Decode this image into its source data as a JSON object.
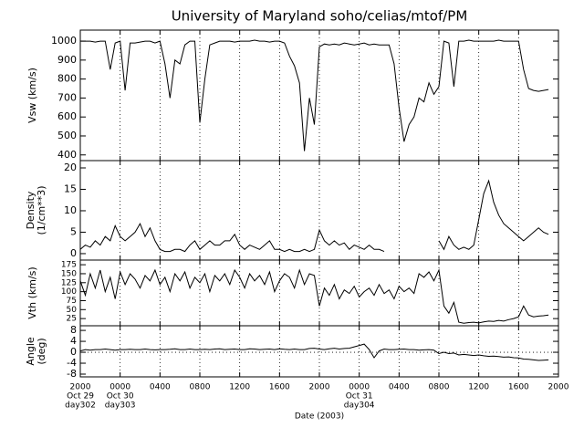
{
  "chart_data": {
    "type": "line",
    "title": "University of Maryland  soho/celias/mtof/PM",
    "xlabel": "Date (2003)",
    "color": "#000000",
    "grid": "x",
    "xlim": [
      0,
      48
    ],
    "xticks": [
      {
        "value": 0,
        "label": "2000"
      },
      {
        "value": 4,
        "label": "0000"
      },
      {
        "value": 8,
        "label": "0400"
      },
      {
        "value": 12,
        "label": "0800"
      },
      {
        "value": 16,
        "label": "1200"
      },
      {
        "value": 20,
        "label": "1600"
      },
      {
        "value": 24,
        "label": "2000"
      },
      {
        "value": 28,
        "label": "0000"
      },
      {
        "value": 32,
        "label": "0400"
      },
      {
        "value": 36,
        "label": "0800"
      },
      {
        "value": 40,
        "label": "1200"
      },
      {
        "value": 44,
        "label": "1600"
      },
      {
        "value": 48,
        "label": "2000"
      }
    ],
    "date_labels": [
      {
        "value": 0,
        "lines": [
          "Oct 29",
          "day302"
        ]
      },
      {
        "value": 4,
        "lines": [
          "Oct 30",
          "day303"
        ]
      },
      {
        "value": 28,
        "lines": [
          "Oct 31",
          "day304"
        ]
      }
    ],
    "x": [
      0,
      0.5,
      1,
      1.5,
      2,
      2.5,
      3,
      3.5,
      4,
      4.5,
      5,
      5.5,
      6,
      6.5,
      7,
      7.5,
      8,
      8.5,
      9,
      9.5,
      10,
      10.5,
      11,
      11.5,
      12,
      12.5,
      13,
      13.5,
      14,
      14.5,
      15,
      15.5,
      16,
      16.5,
      17,
      17.5,
      18,
      18.5,
      19,
      19.5,
      20,
      20.5,
      21,
      21.5,
      22,
      22.5,
      23,
      23.5,
      24,
      24.5,
      25,
      25.5,
      26,
      26.5,
      27,
      27.5,
      28,
      28.5,
      29,
      29.5,
      30,
      30.5,
      31,
      31.5,
      32,
      32.5,
      33,
      33.5,
      34,
      34.5,
      35,
      35.5,
      36,
      36.5,
      37,
      37.5,
      38,
      38.5,
      39,
      39.5,
      40,
      40.5,
      41,
      41.5,
      42,
      42.5,
      43,
      43.5,
      44,
      44.5,
      45,
      45.5,
      46,
      46.5,
      47
    ],
    "panels": [
      {
        "ylabel": [
          "Vsw (km/s)"
        ],
        "ylim": [
          370,
          1058
        ],
        "yticks": [
          400,
          500,
          600,
          700,
          800,
          900,
          1000
        ],
        "series": [
          {
            "values": [
              1000,
              1000,
              1000,
              995,
              1000,
              1000,
              850,
              990,
              1000,
              740,
              990,
              990,
              995,
              1000,
              1000,
              990,
              1000,
              880,
              700,
              900,
              880,
              980,
              1000,
              1000,
              570,
              800,
              980,
              990,
              1000,
              1000,
              1000,
              995,
              1000,
              1000,
              1000,
              1005,
              1000,
              1000,
              995,
              1000,
              1000,
              990,
              920,
              870,
              780,
              420,
              700,
              560,
              970,
              985,
              980,
              985,
              980,
              990,
              985,
              980,
              985,
              990,
              980,
              985,
              980,
              980,
              980,
              880,
              650,
              470,
              560,
              600,
              700,
              680,
              780,
              720,
              760,
              1000,
              990,
              760,
              1000,
              1000,
              1005,
              1000,
              1000,
              1000,
              1000,
              1000,
              1005,
              1000,
              1000,
              1000,
              1000,
              850,
              750,
              740,
              735,
              740,
              745
            ]
          }
        ]
      },
      {
        "ylabel": [
          "Density",
          "(1/cm**3)"
        ],
        "ylim": [
          -1.5,
          21.7
        ],
        "yticks": [
          0,
          5,
          10,
          15,
          20
        ],
        "series": [
          {
            "values": [
              1,
              2,
              1.5,
              3,
              2,
              4,
              3,
              6.5,
              4,
              3,
              4,
              5,
              7,
              4,
              6,
              3,
              1,
              0.5,
              0.5,
              1,
              1,
              0.5,
              2,
              3,
              1,
              2,
              3,
              2,
              2,
              3,
              3,
              4.5,
              2,
              1,
              2,
              1.5,
              1,
              2,
              3,
              1,
              1,
              0.5,
              1,
              0.5,
              0.5,
              1,
              0.5,
              1,
              5.5,
              3,
              2,
              3,
              2,
              2.5,
              1,
              2,
              1.5,
              1,
              2,
              1,
              1,
              0.5,
              null,
              null,
              null,
              null,
              null,
              null,
              null,
              null,
              null,
              null,
              3,
              1,
              4,
              2,
              1,
              1.5,
              1,
              2,
              8,
              14,
              17,
              12,
              9,
              7,
              6,
              5,
              4,
              3,
              4,
              5,
              6,
              5,
              4.5
            ]
          }
        ]
      },
      {
        "ylabel": [
          "Vth (km/s)"
        ],
        "ylim": [
          5,
          188
        ],
        "yticks": [
          25,
          50,
          75,
          100,
          125,
          150,
          175
        ],
        "series": [
          {
            "values": [
              130,
              90,
              150,
              110,
              160,
              100,
              140,
              80,
              155,
              120,
              150,
              135,
              110,
              145,
              130,
              160,
              120,
              140,
              100,
              150,
              130,
              155,
              110,
              140,
              125,
              150,
              100,
              145,
              130,
              150,
              120,
              160,
              140,
              110,
              150,
              130,
              145,
              120,
              155,
              100,
              130,
              150,
              140,
              110,
              160,
              120,
              150,
              145,
              60,
              110,
              90,
              120,
              80,
              105,
              95,
              115,
              85,
              100,
              110,
              90,
              120,
              95,
              105,
              80,
              115,
              100,
              110,
              95,
              150,
              140,
              155,
              130,
              160,
              60,
              40,
              70,
              15,
              12,
              14,
              15,
              13,
              16,
              18,
              17,
              20,
              18,
              22,
              25,
              30,
              60,
              35,
              30,
              32,
              33,
              35
            ]
          }
        ]
      },
      {
        "ylabel": [
          "Angle",
          "(deg)"
        ],
        "ylim": [
          -9,
          9.7
        ],
        "yticks": [
          -8,
          -4,
          0,
          4,
          8
        ],
        "hline": 0,
        "series": [
          {
            "values": [
              0.5,
              1,
              0.8,
              1,
              1,
              1.2,
              1,
              0.8,
              1,
              1,
              1.1,
              1,
              1,
              1.2,
              1,
              0.9,
              1,
              1,
              1.1,
              1.3,
              1,
              1,
              1.2,
              1,
              1,
              1.1,
              1,
              1.2,
              1.3,
              1,
              1.1,
              1.2,
              1,
              1,
              1.3,
              1.2,
              1,
              1.1,
              1.2,
              1,
              1.3,
              1.1,
              1,
              1.2,
              1,
              1,
              1.4,
              1.5,
              1.2,
              1,
              1.3,
              1.5,
              1.2,
              1.4,
              1.5,
              2,
              2.5,
              3,
              1,
              -2,
              0.5,
              1.2,
              1,
              1,
              1.1,
              1.2,
              1,
              1,
              0.8,
              0.9,
              1,
              0.8,
              -0.5,
              0,
              -0.5,
              -0.3,
              -1,
              -0.8,
              -1,
              -1.2,
              -1,
              -1.3,
              -1.5,
              -1.4,
              -1.6,
              -1.8,
              -1.7,
              -2,
              -2.1,
              -2.5,
              -2.6,
              -2.8,
              -3,
              -2.9,
              -2.8
            ]
          }
        ]
      }
    ]
  }
}
